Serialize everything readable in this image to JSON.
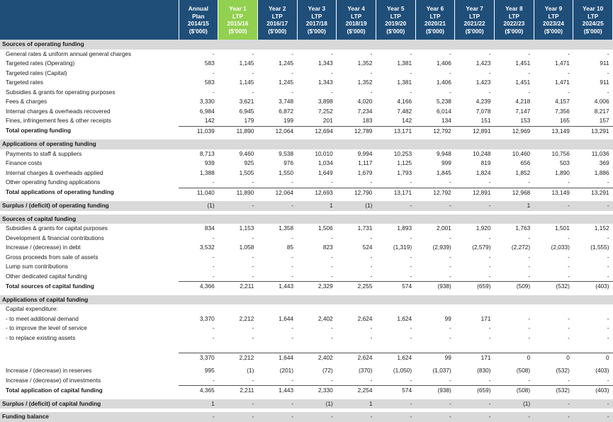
{
  "columns": [
    {
      "id": "annual",
      "lines": [
        "Annual",
        "Plan",
        "2014/15",
        "($'000)"
      ],
      "highlight": false
    },
    {
      "id": "y1",
      "lines": [
        "Year 1",
        "LTP",
        "2015/16",
        "($'000)"
      ],
      "highlight": true
    },
    {
      "id": "y2",
      "lines": [
        "Year 2",
        "LTP",
        "2016/17",
        "($'000)"
      ],
      "highlight": false
    },
    {
      "id": "y3",
      "lines": [
        "Year 3",
        "LTP",
        "2017/18",
        "($'000)"
      ],
      "highlight": false
    },
    {
      "id": "y4",
      "lines": [
        "Year 4",
        "LTP",
        "2018/19",
        "($'000)"
      ],
      "highlight": false
    },
    {
      "id": "y5",
      "lines": [
        "Year 5",
        "LTP",
        "2019/20",
        "($'000)"
      ],
      "highlight": false
    },
    {
      "id": "y6",
      "lines": [
        "Year 6",
        "LTP",
        "2020/21",
        "($'000)"
      ],
      "highlight": false
    },
    {
      "id": "y7",
      "lines": [
        "Year 7",
        "LTP",
        "2021/22",
        "($'000)"
      ],
      "highlight": false
    },
    {
      "id": "y8",
      "lines": [
        "Year 8",
        "LTP",
        "2022/23",
        "($'000)"
      ],
      "highlight": false
    },
    {
      "id": "y9",
      "lines": [
        "Year 9",
        "LTP",
        "2023/24",
        "($'000)"
      ],
      "highlight": false
    },
    {
      "id": "y10",
      "lines": [
        "Year 10",
        "LTP",
        "2024/25",
        "($'000)"
      ],
      "highlight": false
    }
  ],
  "rows": [
    {
      "type": "section",
      "label": "Sources of operating funding"
    },
    {
      "type": "data",
      "label": "General rates & uniform annual general charges",
      "values": [
        "-",
        "-",
        "-",
        "-",
        "-",
        "-",
        "-",
        "-",
        "-",
        "-",
        "-"
      ]
    },
    {
      "type": "data",
      "label": "Targeted rates (Operating)",
      "values": [
        "583",
        "1,145",
        "1,245",
        "1,343",
        "1,352",
        "1,381",
        "1,406",
        "1,423",
        "1,451",
        "1,471",
        "911"
      ]
    },
    {
      "type": "data",
      "label": "Targeted rates (Capital)",
      "values": [
        "-",
        "-",
        "-",
        "-",
        "-",
        "-",
        "-",
        "-",
        "-",
        "-",
        "-"
      ]
    },
    {
      "type": "data",
      "label": "Targeted rates",
      "values": [
        "583",
        "1,145",
        "1,245",
        "1,343",
        "1,352",
        "1,381",
        "1,406",
        "1,423",
        "1,451",
        "1,471",
        "911"
      ]
    },
    {
      "type": "data",
      "label": "Subsidies & grants for operating purposes",
      "values": [
        "-",
        "-",
        "-",
        "-",
        "-",
        "-",
        "-",
        "-",
        "-",
        "-",
        "-"
      ]
    },
    {
      "type": "data",
      "label": "Fees & charges",
      "values": [
        "3,330",
        "3,621",
        "3,748",
        "3,898",
        "4,020",
        "4,166",
        "5,238",
        "4,239",
        "4,218",
        "4,157",
        "4,006"
      ]
    },
    {
      "type": "data",
      "label": "Internal charges & overheads recovered",
      "values": [
        "6,984",
        "6,945",
        "6,872",
        "7,252",
        "7,234",
        "7,482",
        "6,014",
        "7,078",
        "7,147",
        "7,356",
        "8,217"
      ]
    },
    {
      "type": "data",
      "label": "Fines, infringement fees & other receipts",
      "values": [
        "142",
        "179",
        "199",
        "201",
        "183",
        "142",
        "134",
        "151",
        "153",
        "165",
        "157"
      ]
    },
    {
      "type": "total",
      "label": "Total operating funding",
      "values": [
        "11,039",
        "11,890",
        "12,064",
        "12,694",
        "12,789",
        "13,171",
        "12,792",
        "12,891",
        "12,969",
        "13,149",
        "13,291"
      ]
    },
    {
      "type": "spacer"
    },
    {
      "type": "section",
      "label": "Applications of operating funding"
    },
    {
      "type": "data",
      "label": "Payments to staff & suppliers",
      "values": [
        "8,713",
        "9,460",
        "9,538",
        "10,010",
        "9,994",
        "10,253",
        "9,948",
        "10,248",
        "10,460",
        "10,756",
        "11,036"
      ]
    },
    {
      "type": "data",
      "label": "Finance costs",
      "values": [
        "939",
        "925",
        "976",
        "1,034",
        "1,117",
        "1,125",
        "999",
        "819",
        "656",
        "503",
        "369"
      ]
    },
    {
      "type": "data",
      "label": "Internal charges & overheads applied",
      "values": [
        "1,388",
        "1,505",
        "1,550",
        "1,649",
        "1,679",
        "1,793",
        "1,845",
        "1,824",
        "1,852",
        "1,890",
        "1,886"
      ]
    },
    {
      "type": "data",
      "label": "Other operating funding applications",
      "values": [
        "-",
        "-",
        "-",
        "-",
        "-",
        "-",
        "-",
        "-",
        "-",
        "-",
        "-"
      ]
    },
    {
      "type": "total",
      "label": "Total applications of operating funding",
      "values": [
        "11,040",
        "11,890",
        "12,064",
        "12,693",
        "12,790",
        "13,171",
        "12,792",
        "12,891",
        "12,968",
        "13,149",
        "13,291"
      ]
    },
    {
      "type": "spacer"
    },
    {
      "type": "surplus",
      "label": "Surplus / (deficit) of operating funding",
      "values": [
        "(1)",
        "-",
        "-",
        "1",
        "(1)",
        "-",
        "-",
        "-",
        "1",
        "-",
        "-"
      ]
    },
    {
      "type": "spacer"
    },
    {
      "type": "section",
      "label": "Sources of capital funding"
    },
    {
      "type": "data",
      "label": "Subsidies & grants for capital purposes",
      "values": [
        "834",
        "1,153",
        "1,358",
        "1,506",
        "1,731",
        "1,893",
        "2,001",
        "1,920",
        "1,763",
        "1,501",
        "1,152"
      ]
    },
    {
      "type": "data",
      "label": "Development & financial contributions",
      "values": [
        "-",
        "-",
        "-",
        "-",
        "-",
        "-",
        "-",
        "-",
        "-",
        "-",
        "-"
      ]
    },
    {
      "type": "data",
      "label": "Increase / (decrease) in debt",
      "values": [
        "3,532",
        "1,058",
        "85",
        "823",
        "524",
        "(1,319)",
        "(2,939)",
        "(2,579)",
        "(2,272)",
        "(2,033)",
        "(1,555)"
      ]
    },
    {
      "type": "data",
      "label": "Gross proceeds from sale of assets",
      "values": [
        "-",
        "-",
        "-",
        "-",
        "-",
        "-",
        "-",
        "-",
        "-",
        "-",
        "-"
      ]
    },
    {
      "type": "data",
      "label": "Lump sum contributions",
      "values": [
        "-",
        "-",
        "-",
        "-",
        "-",
        "-",
        "-",
        "-",
        "-",
        "-",
        "-"
      ]
    },
    {
      "type": "data",
      "label": "Other dedicated capital funding",
      "values": [
        "-",
        "-",
        "-",
        "-",
        "-",
        "-",
        "-",
        "-",
        "-",
        "-",
        "-"
      ]
    },
    {
      "type": "total",
      "label": "Total sources of capital funding",
      "values": [
        "4,366",
        "2,211",
        "1,443",
        "2,329",
        "2,255",
        "574",
        "(938)",
        "(659)",
        "(509)",
        "(532)",
        "(403)"
      ]
    },
    {
      "type": "spacer"
    },
    {
      "type": "section",
      "label": "Applications of capital funding"
    },
    {
      "type": "data",
      "label": "Capital expenditure:",
      "values": [
        "",
        "",
        "",
        "",
        "",
        "",
        "",
        "",
        "",
        "",
        ""
      ]
    },
    {
      "type": "data",
      "label": "- to meet additional demand",
      "values": [
        "3,370",
        "2,212",
        "1,644",
        "2,402",
        "2,624",
        "1,624",
        "99",
        "171",
        "-",
        "-",
        "-"
      ]
    },
    {
      "type": "data",
      "label": "- to improve the level of service",
      "values": [
        "-",
        "-",
        "-",
        "-",
        "-",
        "-",
        "-",
        "-",
        "-",
        "-",
        "-"
      ]
    },
    {
      "type": "data",
      "label": "- to replace existing assets",
      "values": [
        "-",
        "-",
        "-",
        "-",
        "-",
        "-",
        "-",
        "-",
        "-",
        "-",
        "-"
      ]
    },
    {
      "type": "blank"
    },
    {
      "type": "sub",
      "label": "",
      "values": [
        "3,370",
        "2,212",
        "1,644",
        "2,402",
        "2,624",
        "1,624",
        "99",
        "171",
        "0",
        "0",
        "0"
      ]
    },
    {
      "type": "spacer"
    },
    {
      "type": "data",
      "label": "Increase / (decrease) in reserves",
      "values": [
        "995",
        "(1)",
        "(201)",
        "(72)",
        "(370)",
        "(1,050)",
        "(1,037)",
        "(830)",
        "(508)",
        "(532)",
        "(403)"
      ]
    },
    {
      "type": "data",
      "label": "Increase / (decrease) of investments",
      "values": [
        "-",
        "-",
        "-",
        "-",
        "-",
        "-",
        "-",
        "-",
        "-",
        "-",
        "-"
      ]
    },
    {
      "type": "total",
      "label": "Total application of capital funding",
      "values": [
        "4,365",
        "2,211",
        "1,443",
        "2,330",
        "2,254",
        "574",
        "(938)",
        "(659)",
        "(508)",
        "(532)",
        "(403)"
      ]
    },
    {
      "type": "spacer"
    },
    {
      "type": "surplus",
      "label": "Surplus / (deficit) of capital funding",
      "values": [
        "1",
        "-",
        "-",
        "(1)",
        "1",
        "-",
        "-",
        "-",
        "(1)",
        "-",
        "-"
      ]
    },
    {
      "type": "spacer"
    },
    {
      "type": "surplus",
      "label": "Funding balance",
      "values": [
        "-",
        "-",
        "-",
        "-",
        "-",
        "-",
        "-",
        "-",
        "-",
        "-",
        "-"
      ]
    }
  ]
}
